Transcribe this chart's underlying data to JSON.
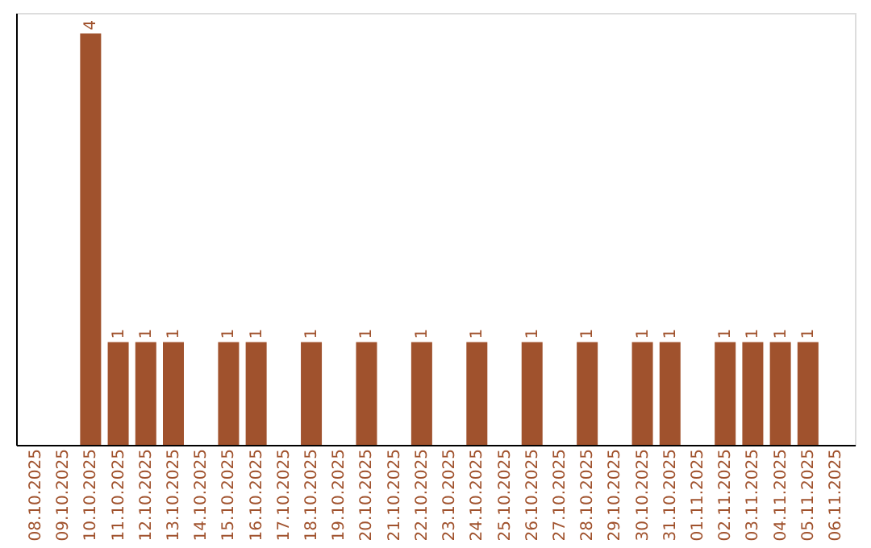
{
  "chart_data": {
    "type": "bar",
    "categories": [
      "08.10.2025",
      "09.10.2025",
      "10.10.2025",
      "11.10.2025",
      "12.10.2025",
      "13.10.2025",
      "14.10.2025",
      "15.10.2025",
      "16.10.2025",
      "17.10.2025",
      "18.10.2025",
      "19.10.2025",
      "20.10.2025",
      "21.10.2025",
      "22.10.2025",
      "23.10.2025",
      "24.10.2025",
      "25.10.2025",
      "26.10.2025",
      "27.10.2025",
      "28.10.2025",
      "29.10.2025",
      "30.10.2025",
      "31.10.2025",
      "01.11.2025",
      "02.11.2025",
      "03.11.2025",
      "04.11.2025",
      "05.11.2025",
      "06.11.2025"
    ],
    "values": [
      null,
      null,
      4,
      1,
      1,
      1,
      null,
      1,
      1,
      null,
      1,
      null,
      1,
      null,
      1,
      null,
      1,
      null,
      1,
      null,
      1,
      null,
      1,
      1,
      null,
      1,
      1,
      1,
      1,
      null
    ],
    "color": "#a0522d",
    "ylim": [
      0,
      4.2
    ],
    "tick_labels": "x",
    "data_labels": true,
    "grid": false
  }
}
